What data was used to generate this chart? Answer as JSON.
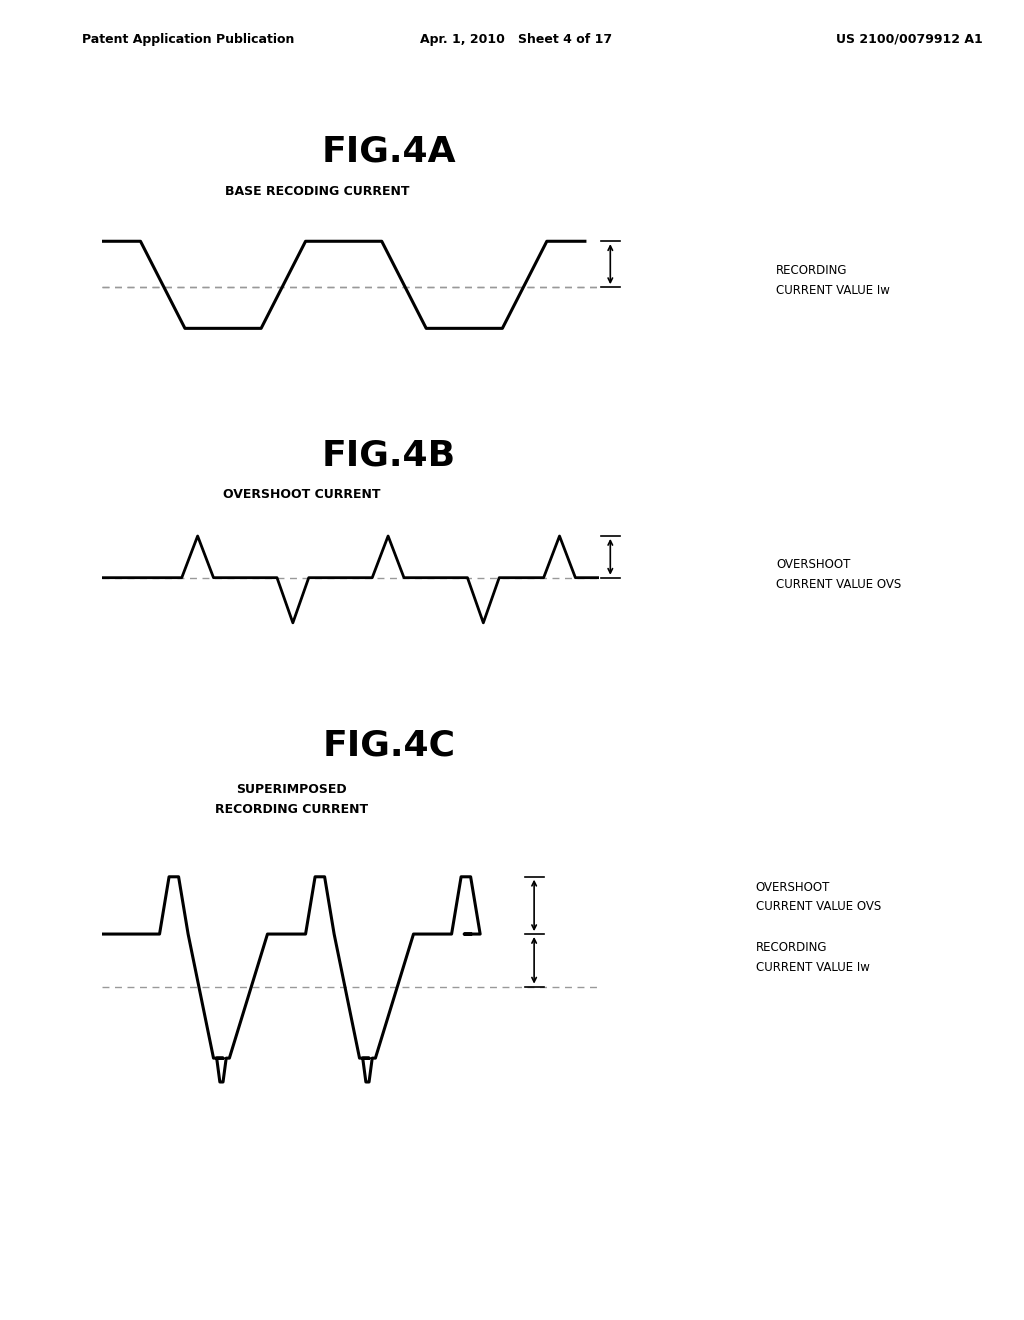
{
  "bg_color": "#ffffff",
  "header_left": "Patent Application Publication",
  "header_mid": "Apr. 1, 2010   Sheet 4 of 17",
  "header_right": "US 2100/0079912 A1",
  "fig4a_title": "FIG.4A",
  "fig4a_label": "BASE RECODING CURRENT",
  "fig4a_annot1": "RECORDING",
  "fig4a_annot2": "CURRENT VALUE Iw",
  "fig4b_title": "FIG.4B",
  "fig4b_label": "OVERSHOOT CURRENT",
  "fig4b_annot1": "OVERSHOOT",
  "fig4b_annot2": "CURRENT VALUE OVS",
  "fig4c_title": "FIG.4C",
  "fig4c_label1": "SUPERIMPOSED",
  "fig4c_label2": "RECORDING CURRENT",
  "fig4c_annot1": "OVERSHOOT",
  "fig4c_annot2": "CURRENT VALUE OVS",
  "fig4c_annot3": "RECORDING",
  "fig4c_annot4": "CURRENT VALUE Iw",
  "line_color": "#000000",
  "dash_color": "#999999"
}
